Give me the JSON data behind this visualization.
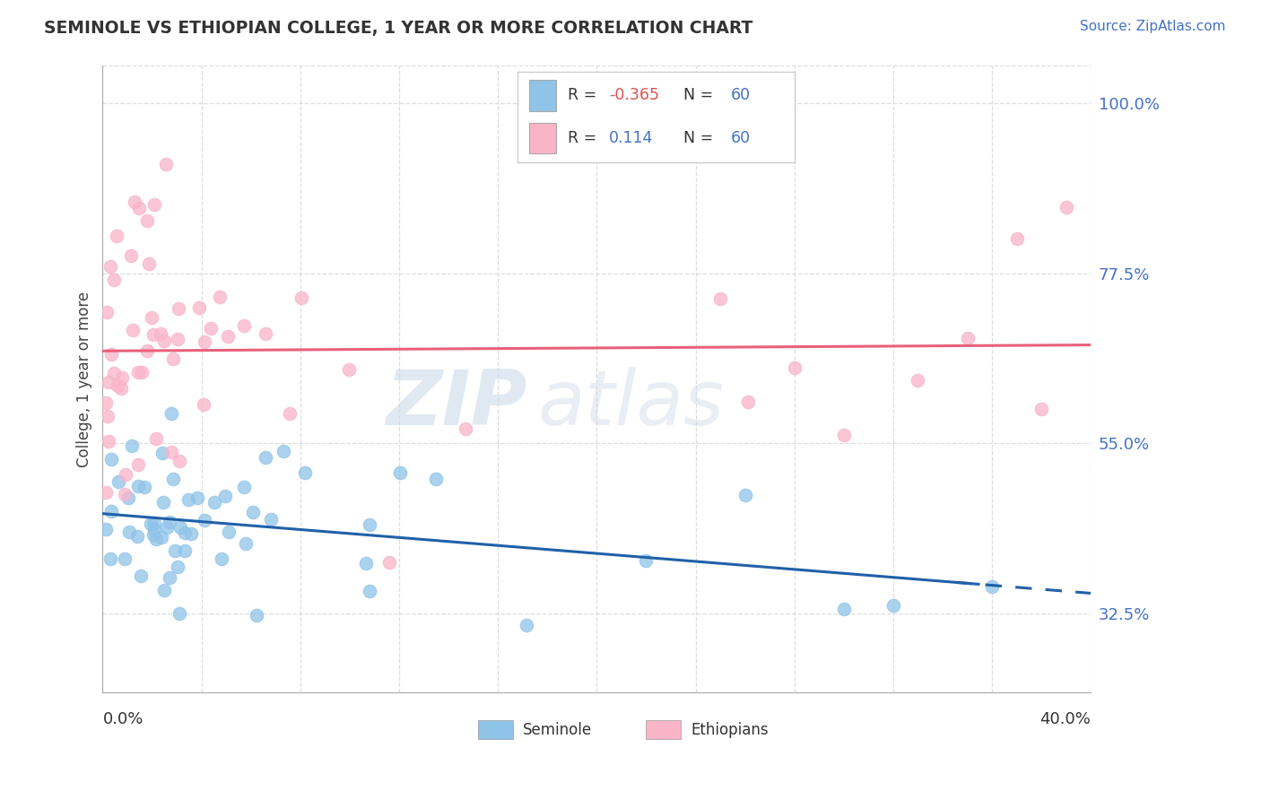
{
  "title": "SEMINOLE VS ETHIOPIAN COLLEGE, 1 YEAR OR MORE CORRELATION CHART",
  "source_text": "Source: ZipAtlas.com",
  "ylabel": "College, 1 year or more",
  "yticks": [
    "32.5%",
    "55.0%",
    "77.5%",
    "100.0%"
  ],
  "ytick_values": [
    0.325,
    0.55,
    0.775,
    1.0
  ],
  "xlim": [
    0.0,
    0.4
  ],
  "ylim": [
    0.22,
    1.05
  ],
  "legend_r_blue": "-0.365",
  "legend_r_pink": "0.114",
  "legend_n": "60",
  "blue_color": "#8fc3e8",
  "pink_color": "#f9b4c8",
  "blue_line_color": "#2060a8",
  "pink_line_color": "#e8607a",
  "watermark_zip": "ZIP",
  "watermark_atlas": "atlas",
  "background_color": "#ffffff",
  "grid_color": "#dddddd"
}
